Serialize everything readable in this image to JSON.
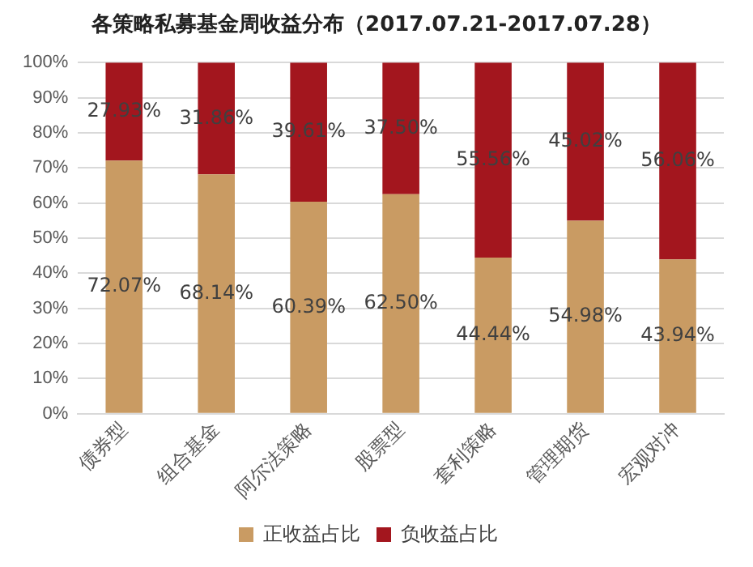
{
  "chart_data": {
    "type": "bar",
    "title": "各策略私募基金周收益分布（2017.07.21-2017.07.28）",
    "stacked": true,
    "categories": [
      "债券型",
      "组合基金",
      "阿尔法策略",
      "股票型",
      "套利策略",
      "管理期货",
      "宏观对冲"
    ],
    "series": [
      {
        "name": "正收益占比",
        "color": "#c99b63",
        "values": [
          72.07,
          68.14,
          60.39,
          62.5,
          44.44,
          54.98,
          43.94
        ],
        "value_labels": [
          "72.07%",
          "68.14%",
          "60.39%",
          "62.50%",
          "44.44%",
          "54.98%",
          "43.94%"
        ]
      },
      {
        "name": "负收益占比",
        "color": "#a3161e",
        "values": [
          27.93,
          31.86,
          39.61,
          37.5,
          55.56,
          45.02,
          56.06
        ],
        "value_labels": [
          "27.93%",
          "31.86%",
          "39.61%",
          "37.50%",
          "55.56%",
          "45.02%",
          "56.06%"
        ]
      }
    ],
    "ylim": [
      0,
      100
    ],
    "yticks": [
      {
        "value": 0,
        "label": "0%"
      },
      {
        "value": 10,
        "label": "10%"
      },
      {
        "value": 20,
        "label": "20%"
      },
      {
        "value": 30,
        "label": "30%"
      },
      {
        "value": 40,
        "label": "40%"
      },
      {
        "value": 50,
        "label": "50%"
      },
      {
        "value": 60,
        "label": "60%"
      },
      {
        "value": 70,
        "label": "70%"
      },
      {
        "value": 80,
        "label": "80%"
      },
      {
        "value": 90,
        "label": "90%"
      },
      {
        "value": 100,
        "label": "100%"
      }
    ],
    "grid": "y",
    "legend": "bottom"
  }
}
